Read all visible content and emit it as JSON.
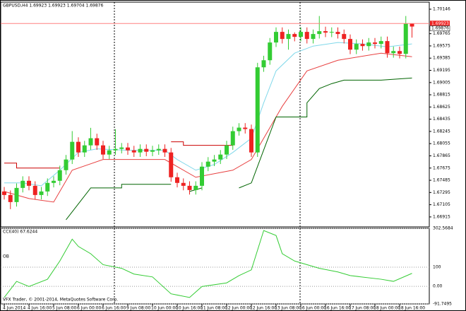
{
  "chart_data": [
    {
      "type": "candlestick",
      "title": "GBPUSD,H4 1.69923 1.69923 1.69704 1.69876",
      "categories": [
        "4 Jun 2014",
        null,
        null,
        null,
        "4 Jun 16:00",
        null,
        null,
        null,
        "5 Jun 08:00",
        null,
        null,
        null,
        "6 Jun 00:00",
        null,
        null,
        null,
        "6 Jun 16:00",
        null,
        null,
        null,
        "9 Jun 08:00",
        null,
        null,
        null,
        "10 Jun 00:00",
        null,
        null,
        null,
        "10 Jun 16:00",
        null,
        null,
        null,
        "11 Jun 08:00",
        null,
        null,
        null,
        "12 Jun 00:00",
        null,
        null,
        null,
        "12 Jun 16:00",
        null,
        null,
        null,
        "13 Jun 08:00",
        null,
        null,
        null,
        "16 Jun 00:00",
        null,
        null,
        null,
        "16 Jun 16:00",
        null,
        null,
        null,
        "17 Jun 08:00",
        null,
        null,
        null,
        "18 Jun 00:00",
        null,
        null,
        null,
        "18 Jun 16:00",
        null,
        null
      ],
      "open": [
        1.67311,
        1.67256,
        1.67146,
        1.67366,
        1.67477,
        1.67399,
        1.67256,
        1.67311,
        1.67444,
        1.67477,
        1.67642,
        1.67808,
        1.68083,
        1.67918,
        1.68028,
        1.68139,
        1.68028,
        1.67885,
        1.67951,
        1.67973,
        1.67995,
        1.67951,
        1.67918,
        1.67973,
        1.67929,
        1.67951,
        1.67973,
        1.67918,
        1.67532,
        1.67444,
        1.67399,
        1.67333,
        1.67399,
        1.67697,
        1.67775,
        1.67808,
        1.67885,
        1.68028,
        1.68249,
        1.68304,
        1.68282,
        1.67918,
        1.69242,
        1.69352,
        1.69628,
        1.69793,
        1.69683,
        1.6976,
        1.69716,
        1.69793,
        1.69683,
        1.6976,
        1.69804,
        1.69782,
        1.69793,
        1.6976,
        1.69683,
        1.69517,
        1.69606,
        1.69572,
        1.69628,
        1.69606,
        1.6965,
        1.69462,
        1.69495,
        1.69451,
        1.69923
      ],
      "high": [
        1.67381,
        1.67326,
        1.67436,
        1.67547,
        1.67547,
        1.67469,
        1.67381,
        1.67514,
        1.67547,
        1.67712,
        1.67878,
        1.6825,
        1.68153,
        1.68098,
        1.683,
        1.68209,
        1.68098,
        1.68021,
        1.6828,
        1.68065,
        1.68065,
        1.68021,
        1.68043,
        1.68043,
        1.68021,
        1.68043,
        1.68043,
        1.67988,
        1.67602,
        1.67514,
        1.67469,
        1.67469,
        1.67767,
        1.67845,
        1.67878,
        1.67955,
        1.68098,
        1.68319,
        1.68374,
        1.68374,
        1.68352,
        1.69312,
        1.69422,
        1.69698,
        1.69863,
        1.69863,
        1.6983,
        1.69786,
        1.69863,
        1.69863,
        1.6983,
        1.7004,
        1.69874,
        1.69863,
        1.69863,
        1.6983,
        1.69753,
        1.69676,
        1.69676,
        1.69698,
        1.69698,
        1.6972,
        1.6972,
        1.69565,
        1.69565,
        1.7004,
        1.69923
      ],
      "low": [
        1.67186,
        1.67036,
        1.67076,
        1.67296,
        1.67329,
        1.67186,
        1.67186,
        1.67241,
        1.67374,
        1.67407,
        1.67572,
        1.67738,
        1.67848,
        1.67848,
        1.67958,
        1.67958,
        1.67815,
        1.67815,
        1.67881,
        1.67903,
        1.67881,
        1.67848,
        1.67848,
        1.67859,
        1.67859,
        1.67881,
        1.67848,
        1.67462,
        1.67374,
        1.67329,
        1.67263,
        1.67263,
        1.67329,
        1.67627,
        1.67705,
        1.67738,
        1.67815,
        1.67958,
        1.68179,
        1.68212,
        1.67848,
        1.67848,
        1.69172,
        1.69282,
        1.69558,
        1.69613,
        1.69517,
        1.69646,
        1.69646,
        1.69613,
        1.69613,
        1.6969,
        1.69712,
        1.69712,
        1.6969,
        1.69613,
        1.69447,
        1.69447,
        1.69502,
        1.69502,
        1.69536,
        1.69536,
        1.69392,
        1.69392,
        1.69381,
        1.69381,
        1.69704
      ],
      "close": [
        1.67256,
        1.67146,
        1.67366,
        1.67477,
        1.67399,
        1.67256,
        1.67311,
        1.67444,
        1.67477,
        1.67642,
        1.67808,
        1.68083,
        1.67918,
        1.68028,
        1.68139,
        1.68028,
        1.67885,
        1.67951,
        1.67973,
        1.67995,
        1.67951,
        1.67918,
        1.67973,
        1.67929,
        1.67951,
        1.67973,
        1.67918,
        1.67532,
        1.67444,
        1.67399,
        1.67333,
        1.67399,
        1.67697,
        1.67775,
        1.67808,
        1.67885,
        1.68028,
        1.68249,
        1.68304,
        1.68282,
        1.67918,
        1.69242,
        1.69352,
        1.69628,
        1.69793,
        1.69683,
        1.6976,
        1.69716,
        1.69793,
        1.69683,
        1.6976,
        1.69804,
        1.69782,
        1.69793,
        1.6976,
        1.69683,
        1.69517,
        1.69606,
        1.69572,
        1.69628,
        1.69606,
        1.6965,
        1.69462,
        1.69495,
        1.69451,
        1.69923,
        1.69876
      ],
      "up_color": "#33cc33",
      "down_color": "#ee2222",
      "overlays": [
        {
          "color": "#80d8ea",
          "x": [
            0,
            3,
            6,
            9,
            12,
            15,
            20,
            26,
            28,
            31,
            34,
            37,
            40,
            42,
            44,
            47,
            50,
            54,
            58,
            62,
            66
          ],
          "values": [
            1.67444,
            1.67444,
            1.67399,
            1.67642,
            1.67918,
            1.67973,
            1.67951,
            1.67951,
            1.67808,
            1.67642,
            1.6773,
            1.67918,
            1.68139,
            1.6869,
            1.69186,
            1.69462,
            1.69572,
            1.69628,
            1.69606,
            1.69561,
            1.69606
          ]
        },
        {
          "color": "#e84040",
          "x": [
            0,
            4,
            8,
            11,
            16,
            26,
            31,
            37,
            40,
            45,
            49,
            54,
            61,
            66
          ],
          "values": [
            1.67311,
            1.67201,
            1.67146,
            1.67642,
            1.67808,
            1.67808,
            1.67532,
            1.67642,
            1.67808,
            1.68635,
            1.69186,
            1.69352,
            1.69462,
            1.69407
          ]
        },
        {
          "color": "#006400",
          "x": [
            10,
            14,
            14,
            19,
            19,
            27,
            28,
            30,
            32,
            33,
            38,
            40,
            44,
            49,
            49,
            51,
            53,
            55,
            61,
            66
          ],
          "values": [
            1.6687,
            1.67366,
            1.67366,
            1.67366,
            1.67422,
            1.67422,
            null,
            1.67311,
            1.67366,
            null,
            1.67366,
            1.67444,
            1.6847,
            1.6847,
            1.6869,
            1.68911,
            1.68988,
            1.69043,
            1.69043,
            1.69076
          ]
        },
        {
          "color": "#cc0000",
          "x": [
            0,
            2,
            2,
            9,
            10,
            27,
            29,
            29,
            37
          ],
          "values": [
            1.67752,
            1.67752,
            1.67675,
            1.67675,
            null,
            1.68083,
            1.68083,
            1.68028,
            1.68028
          ]
        }
      ],
      "ylim": [
        1.6676,
        1.70256
      ],
      "yticks": [
        1.70146,
        1.69765,
        1.69575,
        1.69385,
        1.69195,
        1.69005,
        1.68815,
        1.68625,
        1.68435,
        1.68245,
        1.68055,
        1.67865,
        1.67675,
        1.67485,
        1.67295,
        1.67105,
        1.66915
      ]
    },
    {
      "type": "line",
      "title": "CCI(40) 67.6244",
      "color": "#33cc33",
      "x": [
        0,
        2,
        4,
        7,
        9,
        11,
        12,
        14,
        16,
        19,
        21,
        24,
        27,
        30,
        32,
        36,
        38,
        40,
        42,
        44,
        45,
        47,
        51,
        54,
        56,
        61,
        63,
        66
      ],
      "values": [
        -58,
        26,
        -1,
        37,
        132,
        246,
        208,
        170,
        113,
        94,
        64,
        49,
        -39,
        -58,
        -1,
        18,
        56,
        86,
        291,
        265,
        170,
        132,
        94,
        75,
        56,
        37,
        26,
        67.6244
      ],
      "ylim": [
        -91.7495,
        302.5684
      ],
      "yticks": [
        302.5684,
        100,
        {
          "value": 0,
          "label": "0.00"
        },
        -91.7495
      ],
      "annotation": "OB",
      "grid": true
    }
  ],
  "footer": "VFX Trader, © 2001-2014, MetaQuotes Software Corp."
}
